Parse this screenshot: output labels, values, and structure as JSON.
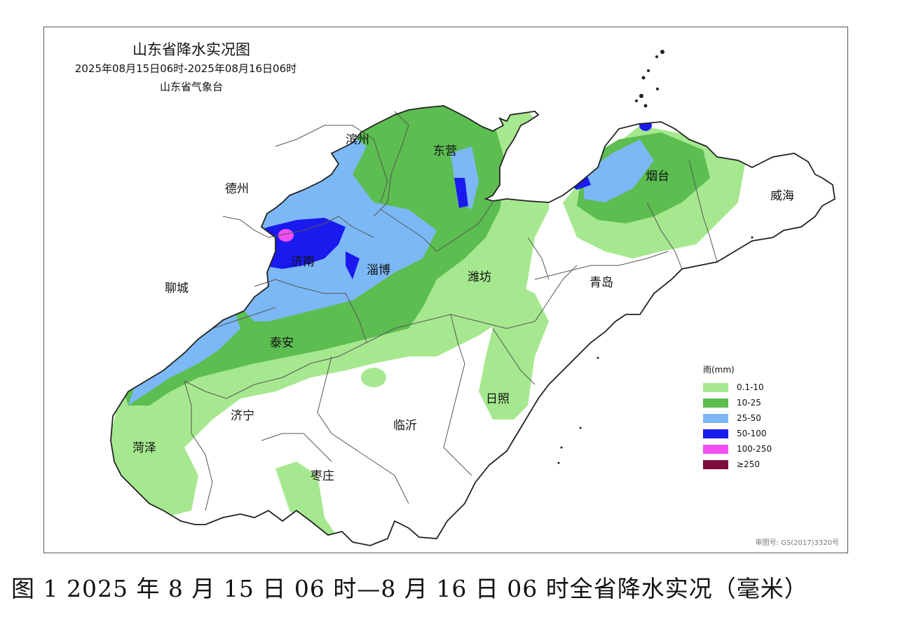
{
  "map": {
    "title": "山东省降水实况图",
    "period": "2025年08月15日06时-2025年08月16日06时",
    "source": "山东省气象台",
    "approval": "审图号: GS(2017)3320号"
  },
  "cities": [
    {
      "id": "binzhou",
      "label": "滨州"
    },
    {
      "id": "dongying",
      "label": "东营"
    },
    {
      "id": "dezhou",
      "label": "德州"
    },
    {
      "id": "yantai",
      "label": "烟台"
    },
    {
      "id": "weihai",
      "label": "威海"
    },
    {
      "id": "jinan",
      "label": "济南"
    },
    {
      "id": "zibo",
      "label": "淄博"
    },
    {
      "id": "weifang",
      "label": "潍坊"
    },
    {
      "id": "qingdao",
      "label": "青岛"
    },
    {
      "id": "liaocheng",
      "label": "聊城"
    },
    {
      "id": "taian",
      "label": "泰安"
    },
    {
      "id": "rizhao",
      "label": "日照"
    },
    {
      "id": "jining",
      "label": "济宁"
    },
    {
      "id": "linyi",
      "label": "临沂"
    },
    {
      "id": "heze",
      "label": "菏泽"
    },
    {
      "id": "zaozhuang",
      "label": "枣庄"
    }
  ],
  "legend": {
    "title": "雨(mm)",
    "items": [
      {
        "label": "0.1-10",
        "color": "#a6e88f"
      },
      {
        "label": "10-25",
        "color": "#5cbd50"
      },
      {
        "label": "25-50",
        "color": "#7cb8f5"
      },
      {
        "label": "50-100",
        "color": "#1a1aee"
      },
      {
        "label": "100-250",
        "color": "#f24ff2"
      },
      {
        "label": "≥250",
        "color": "#7d0e3c"
      }
    ]
  },
  "caption": "图 1 2025 年 8 月 15 日 06 时—8 月 16 日 06 时全省降水实况（毫米）"
}
